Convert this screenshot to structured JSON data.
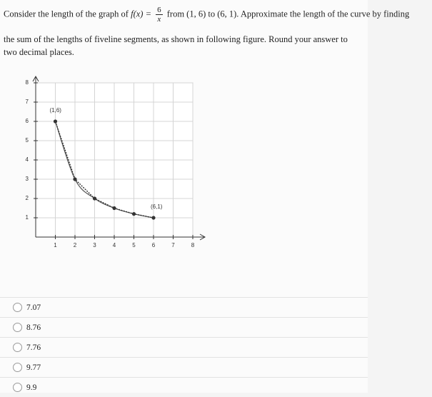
{
  "question": {
    "prefix": "Consider the length of the graph of",
    "formula": "f(x) =",
    "numerator": "6",
    "denominator": "x",
    "suffix": "from (1, 6) to (6, 1). Approximate the length of the curve by finding",
    "body": "the sum of the lengths of fiveline segments, as shown in following figure. Round your answer to two decimal places."
  },
  "figure": {
    "xlim": [
      0,
      8
    ],
    "ylim": [
      0,
      8
    ],
    "xticks": [
      1,
      2,
      3,
      4,
      5,
      6,
      7,
      8
    ],
    "yticks": [
      1,
      2,
      3,
      4,
      5,
      6,
      7,
      8
    ],
    "x": [
      1,
      2,
      3,
      4,
      5,
      6
    ],
    "y": [
      6,
      3,
      2,
      1.5,
      1.2,
      1
    ],
    "annotations": [
      {
        "text": "(1,6)",
        "x": 1,
        "y": 6
      },
      {
        "text": "(6,1)",
        "x": 6,
        "y": 1
      }
    ]
  },
  "options": [
    "7.07",
    "8.76",
    "7.76",
    "9.77",
    "9.9"
  ]
}
